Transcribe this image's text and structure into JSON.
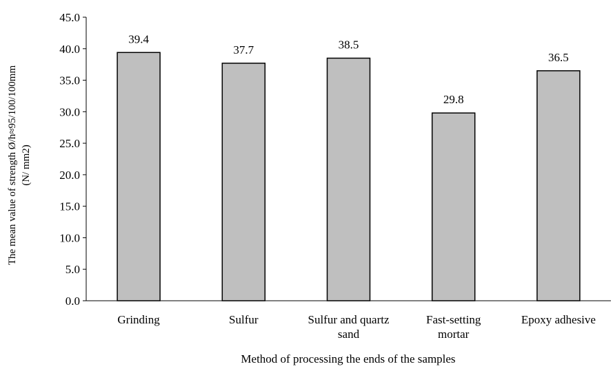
{
  "chart_data": {
    "type": "bar",
    "title": "",
    "categories": [
      [
        "Grinding"
      ],
      [
        "Sulfur"
      ],
      [
        "Sulfur and quartz",
        "sand"
      ],
      [
        "Fast-setting",
        "mortar"
      ],
      [
        "Epoxy adhesive"
      ]
    ],
    "values": [
      39.4,
      37.7,
      38.5,
      29.8,
      36.5
    ],
    "data_labels": [
      "39.4",
      "37.7",
      "38.5",
      "29.8",
      "36.5"
    ],
    "xlabel": "Method of processing the ends of the samples",
    "ylabel_lines": [
      "The mean value of strength Ø/h≈95/100/100mm",
      "(N/ mm2)"
    ],
    "ylim": [
      0,
      45
    ],
    "yticks": [
      "0.0",
      "5.0",
      "10.0",
      "15.0",
      "20.0",
      "25.0",
      "30.0",
      "35.0",
      "40.0",
      "45.0"
    ],
    "ytick_values": [
      0,
      5,
      10,
      15,
      20,
      25,
      30,
      35,
      40,
      45
    ],
    "grid": false,
    "legend": "none",
    "colors": {
      "bar_fill": "#bfbfbf",
      "bar_stroke": "#000000",
      "axis": "#000000"
    }
  }
}
